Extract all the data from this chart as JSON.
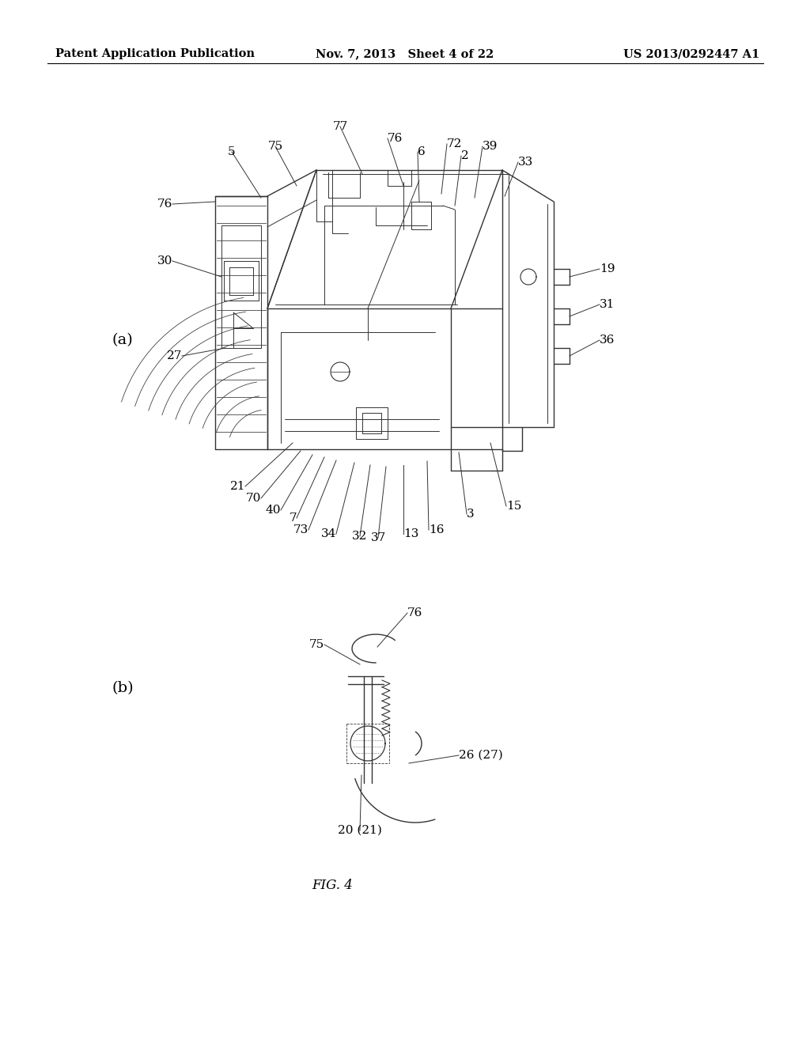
{
  "background_color": "#ffffff",
  "header_left": "Patent Application Publication",
  "header_mid": "Nov. 7, 2013   Sheet 4 of 22",
  "header_right": "US 2013/0292447 A1",
  "fig_label": "FIG. 4",
  "label_a": "(a)",
  "label_b": "(b)"
}
